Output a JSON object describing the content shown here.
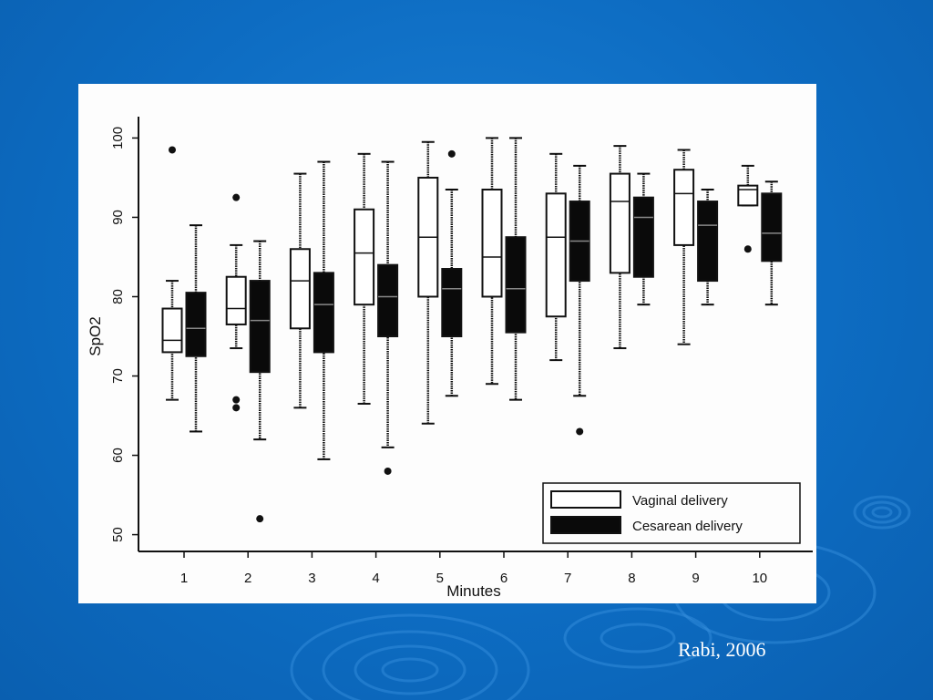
{
  "slide": {
    "citation": "Rabi, 2006",
    "background_color": "#0d6cc2",
    "ripple_color": "#3a93e0"
  },
  "chart_data": {
    "type": "boxplot",
    "xlabel": "Minutes",
    "ylabel": "SpO2",
    "ylim": [
      48,
      102
    ],
    "y_ticks": [
      50,
      60,
      70,
      80,
      90,
      100
    ],
    "categories": [
      "1",
      "2",
      "3",
      "4",
      "5",
      "6",
      "7",
      "8",
      "9",
      "10"
    ],
    "grid": false,
    "legend_position": "bottom-right",
    "series": [
      {
        "name": "Vaginal delivery",
        "fill": "#ffffff",
        "boxes": [
          {
            "min": 67,
            "q1": 73,
            "median": 74.5,
            "q3": 78.5,
            "max": 82,
            "outliers": [
              98.5
            ]
          },
          {
            "min": 73.5,
            "q1": 76.5,
            "median": 78.5,
            "q3": 82.5,
            "max": 86.5,
            "outliers": [
              92.5,
              67,
              66
            ]
          },
          {
            "min": 66,
            "q1": 76,
            "median": 82,
            "q3": 86,
            "max": 95.5,
            "outliers": []
          },
          {
            "min": 66.5,
            "q1": 79,
            "median": 85.5,
            "q3": 91,
            "max": 98,
            "outliers": []
          },
          {
            "min": 64,
            "q1": 80,
            "median": 87.5,
            "q3": 95,
            "max": 99.5,
            "outliers": []
          },
          {
            "min": 69,
            "q1": 80,
            "median": 85,
            "q3": 93.5,
            "max": 100,
            "outliers": []
          },
          {
            "min": 72,
            "q1": 77.5,
            "median": 87.5,
            "q3": 93,
            "max": 98,
            "outliers": []
          },
          {
            "min": 73.5,
            "q1": 83,
            "median": 92,
            "q3": 95.5,
            "max": 99,
            "outliers": []
          },
          {
            "min": 74,
            "q1": 86.5,
            "median": 93,
            "q3": 96,
            "max": 98.5,
            "outliers": []
          },
          {
            "min": 91.5,
            "q1": 91.5,
            "median": 93.5,
            "q3": 94,
            "max": 96.5,
            "outliers": [
              86
            ]
          }
        ]
      },
      {
        "name": "Cesarean delivery",
        "fill": "#0a0a0a",
        "boxes": [
          {
            "min": 63,
            "q1": 72.5,
            "median": 76,
            "q3": 80.5,
            "max": 89,
            "outliers": []
          },
          {
            "min": 62,
            "q1": 70.5,
            "median": 77,
            "q3": 82,
            "max": 87,
            "outliers": [
              52
            ]
          },
          {
            "min": 59.5,
            "q1": 73,
            "median": 79,
            "q3": 83,
            "max": 97,
            "outliers": []
          },
          {
            "min": 61,
            "q1": 75,
            "median": 80,
            "q3": 84,
            "max": 97,
            "outliers": [
              58
            ]
          },
          {
            "min": 67.5,
            "q1": 75,
            "median": 81,
            "q3": 83.5,
            "max": 93.5,
            "outliers": [
              98
            ]
          },
          {
            "min": 67,
            "q1": 75.5,
            "median": 81,
            "q3": 87.5,
            "max": 100,
            "outliers": []
          },
          {
            "min": 67.5,
            "q1": 82,
            "median": 87,
            "q3": 92,
            "max": 96.5,
            "outliers": [
              63
            ]
          },
          {
            "min": 79,
            "q1": 82.5,
            "median": 90,
            "q3": 92.5,
            "max": 95.5,
            "outliers": []
          },
          {
            "min": 79,
            "q1": 82,
            "median": 89,
            "q3": 92,
            "max": 93.5,
            "outliers": []
          },
          {
            "min": 79,
            "q1": 84.5,
            "median": 88,
            "q3": 93,
            "max": 94.5,
            "outliers": []
          }
        ]
      }
    ]
  }
}
